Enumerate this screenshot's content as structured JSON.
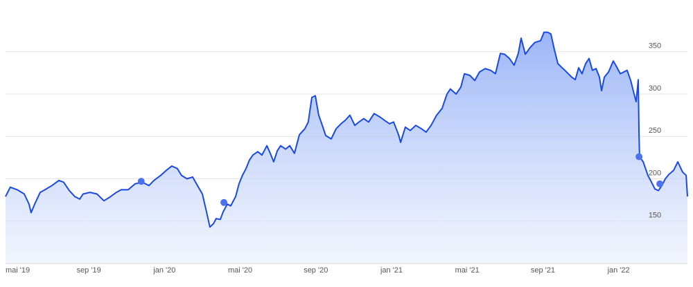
{
  "chart_data": {
    "type": "line",
    "x": [
      -0.4,
      -0.15,
      0.22,
      0.59,
      0.84,
      0.95,
      1.14,
      1.43,
      1.68,
      2.05,
      2.42,
      2.67,
      2.97,
      3.26,
      3.52,
      3.7,
      4.07,
      4.43,
      4.8,
      5.09,
      5.46,
      5.71,
      6.08,
      6.45,
      6.81,
      7.18,
      7.44,
      7.8,
      8.1,
      8.39,
      8.68,
      8.9,
      9.19,
      9.49,
      9.74,
      10,
      10.22,
      10.4,
      10.59,
      10.73,
      10.95,
      11.1,
      11.32,
      11.5,
      11.76,
      11.94,
      12.12,
      12.31,
      12.49,
      12.67,
      12.93,
      13.15,
      13.41,
      13.59,
      13.77,
      13.96,
      14.14,
      14.4,
      14.62,
      14.87,
      15.13,
      15.42,
      15.6,
      15.79,
      15.97,
      16.15,
      16.34,
      16.52,
      16.81,
      17.07,
      17.33,
      17.55,
      17.8,
      18.06,
      18.28,
      18.53,
      18.79,
      19.08,
      19.38,
      19.63,
      19.89,
      20.11,
      20.37,
      20.48,
      20.73,
      20.99,
      21.28,
      21.58,
      21.83,
      22.09,
      22.38,
      22.67,
      22.93,
      23.11,
      23.41,
      23.66,
      23.85,
      24.14,
      24.4,
      24.65,
      24.95,
      25.24,
      25.49,
      25.75,
      25.97,
      26.23,
      26.48,
      26.7,
      26.85,
      27.07,
      27.33,
      27.58,
      27.88,
      28.06,
      28.24,
      28.42,
      28.61,
      28.79,
      28.97,
      29.16,
      29.34,
      29.52,
      29.71,
      29.89,
      30.07,
      30.26,
      30.44,
      30.62,
      30.81,
      30.99,
      31.1,
      31.25,
      31.47,
      31.72,
      31.9,
      32.09,
      32.27,
      32.45,
      32.64,
      32.82,
      32.93,
      33.04,
      33.08,
      33.11,
      33.3,
      33.55,
      33.74,
      33.92,
      34.1,
      34.29,
      34.47,
      34.65,
      34.91,
      35.13,
      35.38,
      35.57,
      35.64
    ],
    "series": [
      {
        "color": "#1849e6",
        "values": [
          179,
          190,
          187,
          182,
          170,
          160,
          170,
          184,
          187,
          192,
          198,
          196,
          186,
          179,
          176,
          182,
          184,
          182,
          174,
          178,
          184,
          187,
          187,
          194,
          196,
          192,
          198,
          204,
          210,
          215,
          212,
          204,
          200,
          202,
          192,
          182,
          161,
          143,
          147,
          153,
          152,
          161,
          170,
          168,
          179,
          194,
          204,
          212,
          222,
          228,
          232,
          228,
          239,
          230,
          220,
          233,
          239,
          235,
          239,
          230,
          252,
          259,
          267,
          296,
          298,
          275,
          263,
          251,
          247,
          259,
          265,
          269,
          275,
          263,
          267,
          271,
          267,
          277,
          273,
          269,
          265,
          267,
          252,
          243,
          261,
          257,
          263,
          259,
          255,
          263,
          275,
          283,
          300,
          306,
          300,
          308,
          324,
          322,
          316,
          326,
          330,
          328,
          324,
          348,
          347,
          342,
          334,
          348,
          366,
          347,
          355,
          361,
          363,
          373,
          373,
          371,
          352,
          336,
          332,
          328,
          324,
          320,
          317,
          331,
          324,
          336,
          342,
          328,
          330,
          320,
          304,
          320,
          326,
          339,
          332,
          324,
          326,
          328,
          316,
          300,
          291,
          317,
          252,
          226,
          220,
          204,
          196,
          188,
          186,
          192,
          200,
          205,
          210,
          220,
          208,
          204,
          179
        ]
      }
    ],
    "markers": {
      "x": [
        6.77,
        11.14,
        33.08,
        34.18
      ],
      "values": [
        197,
        172,
        226,
        194
      ]
    },
    "xlim": [
      -0.4,
      35.64
    ],
    "ylim": [
      100,
      411
    ],
    "xticks": [
      {
        "value": 0,
        "label": "mai '19"
      },
      {
        "value": 4,
        "label": "sep '19"
      },
      {
        "value": 8,
        "label": "jan '20"
      },
      {
        "value": 12,
        "label": "mai '20"
      },
      {
        "value": 16,
        "label": "sep '20"
      },
      {
        "value": 20,
        "label": "jan '21"
      },
      {
        "value": 24,
        "label": "mai '21"
      },
      {
        "value": 28,
        "label": "sep '21"
      },
      {
        "value": 32,
        "label": "jan '22"
      }
    ],
    "yticks": [
      150,
      200,
      250,
      300,
      350
    ],
    "grid": true
  }
}
